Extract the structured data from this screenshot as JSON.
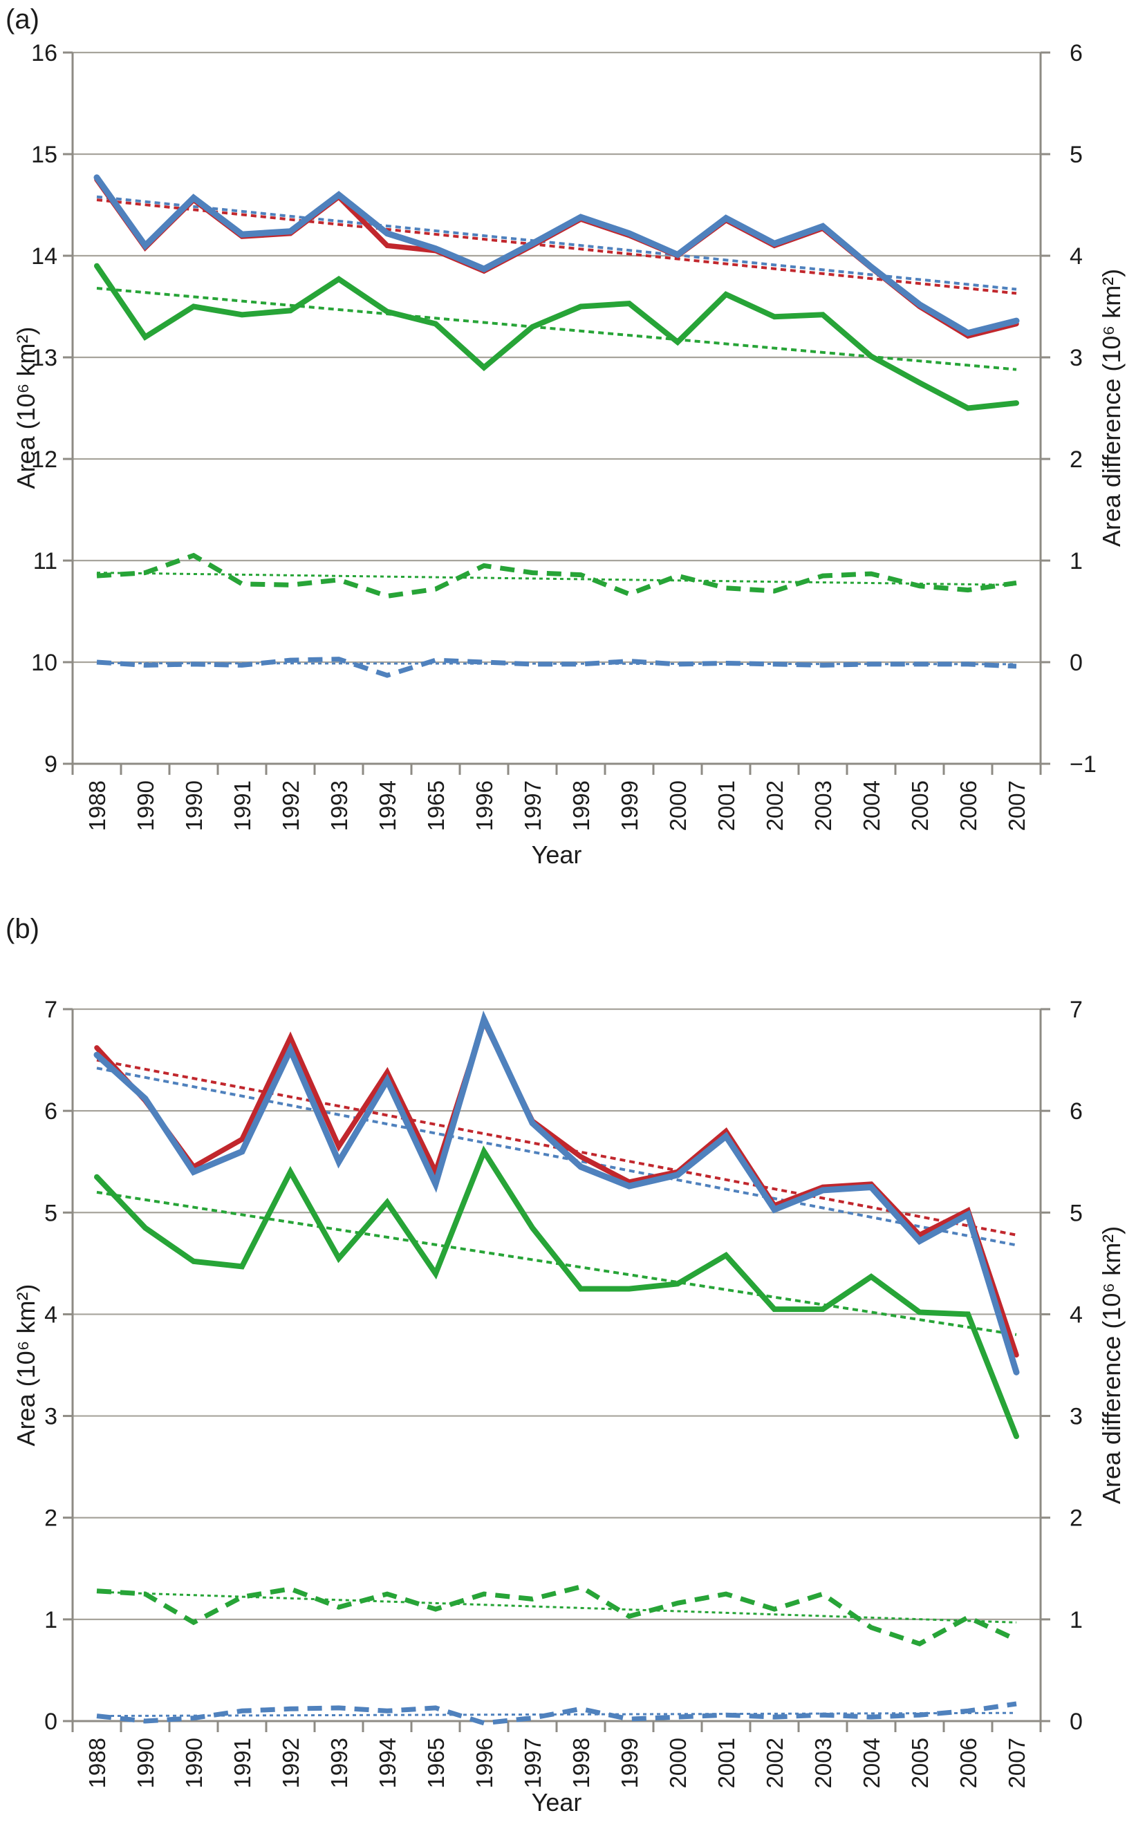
{
  "figure": {
    "background": "#ffffff",
    "text_color": "#1c1c1c",
    "gridline_color": "#a7a49c",
    "axis_color": "#8e8b84"
  },
  "chart_data": [
    {
      "type": "line",
      "panel_label": "(a)",
      "xlabel": "Year",
      "ylabel_left": "Area (10⁶ km²)",
      "ylabel_right": "Area difference (10⁶ km²)",
      "grid": true,
      "legend": "none",
      "categories": [
        "1988",
        "1990",
        "1990",
        "1991",
        "1992",
        "1993",
        "1994",
        "1965",
        "1996",
        "1997",
        "1998",
        "1999",
        "2000",
        "2001",
        "2002",
        "2003",
        "2004",
        "2005",
        "2006",
        "2007"
      ],
      "left_axis": {
        "min": 9,
        "max": 16,
        "tick_labels": [
          "16",
          "15",
          "14",
          "13",
          "12",
          "11",
          "10",
          "9"
        ]
      },
      "right_axis": {
        "min": -1,
        "max": 6,
        "tick_labels": [
          "6",
          "5",
          "4",
          "3",
          "2",
          "1",
          "0",
          "−1"
        ]
      },
      "series": [
        {
          "name": "red-trendline",
          "kind": "trend",
          "axis": "left",
          "color": "#c1272d",
          "width": 4,
          "dash": "8 6",
          "values": [
            14.55,
            13.63
          ]
        },
        {
          "name": "blue-trendline",
          "kind": "trend",
          "axis": "left",
          "color": "#4f81bd",
          "width": 4,
          "dash": "8 6",
          "values": [
            14.58,
            13.67
          ]
        },
        {
          "name": "green-trendline",
          "kind": "trend",
          "axis": "left",
          "color": "#27a437",
          "width": 4,
          "dash": "8 6",
          "values": [
            13.68,
            12.88
          ]
        },
        {
          "name": "green-difference-trendline",
          "kind": "trend",
          "axis": "right",
          "color": "#27a437",
          "width": 3,
          "dash": "5 5",
          "values": [
            0.88,
            0.76
          ]
        },
        {
          "name": "blue-difference-trendline",
          "kind": "trend",
          "axis": "right",
          "color": "#4f81bd",
          "width": 3,
          "dash": "5 5",
          "values": [
            -0.01,
            -0.02
          ]
        },
        {
          "name": "green-dashed-difference",
          "kind": "data",
          "axis": "right",
          "color": "#27a437",
          "width": 7,
          "dash": "21 13",
          "values": [
            0.85,
            0.88,
            1.05,
            0.77,
            0.76,
            0.81,
            0.65,
            0.72,
            0.95,
            0.88,
            0.86,
            0.67,
            0.85,
            0.73,
            0.7,
            0.85,
            0.87,
            0.75,
            0.71,
            0.78
          ]
        },
        {
          "name": "blue-dashed-difference",
          "kind": "data",
          "axis": "right",
          "color": "#4f81bd",
          "width": 7,
          "dash": "21 13",
          "values": [
            0.0,
            -0.03,
            -0.02,
            -0.03,
            0.02,
            0.03,
            -0.13,
            0.02,
            0.0,
            -0.02,
            -0.02,
            0.01,
            -0.02,
            -0.01,
            -0.02,
            -0.03,
            -0.02,
            -0.02,
            -0.02,
            -0.04
          ]
        },
        {
          "name": "red-line",
          "kind": "data",
          "axis": "left",
          "color": "#c1272d",
          "width": 7.5,
          "dash": null,
          "values": [
            14.75,
            14.08,
            14.55,
            14.19,
            14.22,
            14.58,
            14.1,
            14.05,
            13.85,
            14.1,
            14.36,
            14.2,
            14.0,
            14.35,
            14.1,
            14.27,
            13.88,
            13.5,
            13.21,
            13.33
          ]
        },
        {
          "name": "blue-line",
          "kind": "data",
          "axis": "left",
          "color": "#4f81bd",
          "width": 9,
          "dash": null,
          "values": [
            14.77,
            14.1,
            14.57,
            14.21,
            14.24,
            14.6,
            14.22,
            14.07,
            13.87,
            14.12,
            14.38,
            14.22,
            14.01,
            14.37,
            14.12,
            14.29,
            13.89,
            13.52,
            13.24,
            13.36
          ]
        },
        {
          "name": "green-line",
          "kind": "data",
          "axis": "left",
          "color": "#27a437",
          "width": 8,
          "dash": null,
          "values": [
            13.9,
            13.2,
            13.5,
            13.42,
            13.46,
            13.77,
            13.45,
            13.33,
            12.9,
            13.3,
            13.5,
            13.53,
            13.15,
            13.62,
            13.4,
            13.42,
            13.01,
            12.75,
            12.5,
            12.55
          ]
        }
      ]
    },
    {
      "type": "line",
      "panel_label": "(b)",
      "xlabel": "Year",
      "ylabel_left": "Area (10⁶ km²)",
      "ylabel_right": "Area difference (10⁶ km²)",
      "grid": true,
      "legend": "none",
      "categories": [
        "1988",
        "1990",
        "1990",
        "1991",
        "1992",
        "1993",
        "1994",
        "1965",
        "1996",
        "1997",
        "1998",
        "1999",
        "2000",
        "2001",
        "2002",
        "2003",
        "2004",
        "2005",
        "2006",
        "2007"
      ],
      "left_axis": {
        "min": 0,
        "max": 7,
        "tick_labels": [
          "7",
          "6",
          "5",
          "4",
          "3",
          "2",
          "1",
          "0"
        ]
      },
      "right_axis": {
        "min": 0,
        "max": 7,
        "tick_labels": [
          "7",
          "6",
          "5",
          "4",
          "3",
          "2",
          "1",
          "0"
        ]
      },
      "series": [
        {
          "name": "red-trendline",
          "kind": "trend",
          "axis": "left",
          "color": "#c1272d",
          "width": 4,
          "dash": "8 6",
          "values": [
            6.5,
            4.78
          ]
        },
        {
          "name": "blue-trendline",
          "kind": "trend",
          "axis": "left",
          "color": "#4f81bd",
          "width": 4,
          "dash": "8 6",
          "values": [
            6.42,
            4.68
          ]
        },
        {
          "name": "green-trendline",
          "kind": "trend",
          "axis": "left",
          "color": "#27a437",
          "width": 4,
          "dash": "8 6",
          "values": [
            5.2,
            3.8
          ]
        },
        {
          "name": "green-difference-trendline",
          "kind": "trend",
          "axis": "right",
          "color": "#27a437",
          "width": 3,
          "dash": "5 5",
          "values": [
            1.27,
            0.97
          ]
        },
        {
          "name": "blue-difference-trendline",
          "kind": "trend",
          "axis": "right",
          "color": "#4f81bd",
          "width": 3,
          "dash": "5 5",
          "values": [
            0.05,
            0.08
          ]
        },
        {
          "name": "green-dashed-difference",
          "kind": "data",
          "axis": "right",
          "color": "#27a437",
          "width": 7,
          "dash": "21 13",
          "values": [
            1.28,
            1.25,
            0.97,
            1.22,
            1.3,
            1.12,
            1.25,
            1.1,
            1.25,
            1.2,
            1.32,
            1.03,
            1.16,
            1.25,
            1.1,
            1.25,
            0.92,
            0.76,
            1.02,
            0.8
          ]
        },
        {
          "name": "blue-dashed-difference",
          "kind": "data",
          "axis": "right",
          "color": "#4f81bd",
          "width": 7,
          "dash": "21 13",
          "values": [
            0.05,
            0.0,
            0.03,
            0.1,
            0.12,
            0.13,
            0.1,
            0.13,
            -0.02,
            0.03,
            0.12,
            0.02,
            0.04,
            0.06,
            0.04,
            0.06,
            0.04,
            0.06,
            0.1,
            0.17
          ]
        },
        {
          "name": "red-line",
          "kind": "data",
          "axis": "left",
          "color": "#c1272d",
          "width": 7.5,
          "dash": null,
          "values": [
            6.62,
            6.1,
            5.45,
            5.72,
            6.72,
            5.65,
            6.38,
            5.4,
            6.88,
            5.9,
            5.55,
            5.3,
            5.4,
            5.8,
            5.07,
            5.25,
            5.28,
            4.78,
            5.02,
            3.6
          ]
        },
        {
          "name": "blue-line",
          "kind": "data",
          "axis": "left",
          "color": "#4f81bd",
          "width": 9,
          "dash": null,
          "values": [
            6.55,
            6.12,
            5.4,
            5.6,
            6.6,
            5.5,
            6.3,
            5.28,
            6.9,
            5.88,
            5.45,
            5.26,
            5.37,
            5.75,
            5.03,
            5.22,
            5.25,
            4.72,
            4.98,
            3.43
          ]
        },
        {
          "name": "green-line",
          "kind": "data",
          "axis": "left",
          "color": "#27a437",
          "width": 8,
          "dash": null,
          "values": [
            5.35,
            4.85,
            4.52,
            4.47,
            5.4,
            4.55,
            5.1,
            4.4,
            5.6,
            4.85,
            4.25,
            4.25,
            4.3,
            4.58,
            4.05,
            4.05,
            4.37,
            4.02,
            4.0,
            2.8
          ]
        }
      ]
    }
  ]
}
